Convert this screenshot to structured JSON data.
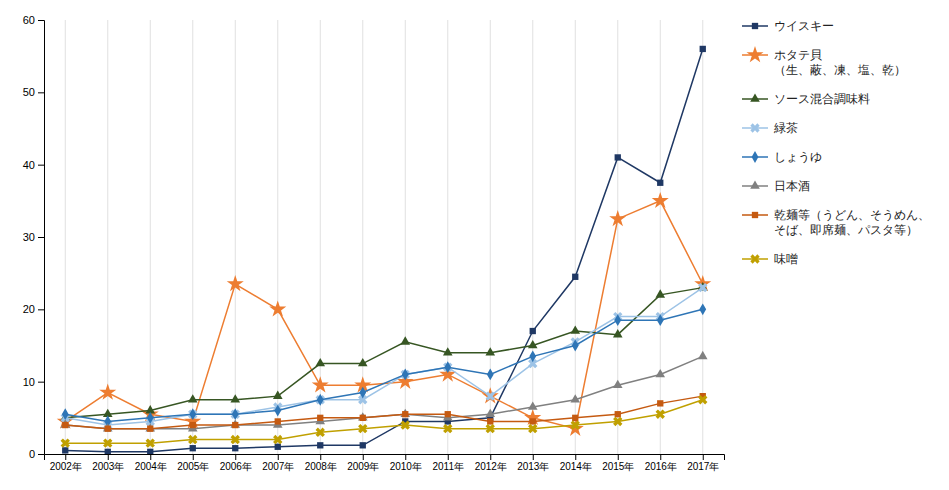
{
  "chart_data": {
    "type": "line",
    "categories": [
      "2002年",
      "2003年",
      "2004年",
      "2005年",
      "2006年",
      "2007年",
      "2008年",
      "2009年",
      "2010年",
      "2011年",
      "2012年",
      "2013年",
      "2014年",
      "2015年",
      "2016年",
      "2017年"
    ],
    "series": [
      {
        "name": "ウイスキー",
        "color": "#1F3864",
        "marker": "square",
        "values": [
          0.5,
          0.3,
          0.3,
          0.8,
          0.8,
          1.0,
          1.2,
          1.2,
          4.5,
          4.5,
          5.0,
          17.0,
          24.5,
          41.0,
          37.5,
          56.0
        ]
      },
      {
        "name": "ホタテ貝\n（生、蔽、凍、塩、乾）",
        "color": "#ED7D31",
        "marker": "star",
        "values": [
          4.5,
          8.5,
          5.5,
          4.5,
          23.5,
          20.0,
          9.5,
          9.5,
          10.0,
          11.0,
          8.0,
          5.0,
          3.5,
          32.5,
          35.0,
          23.5
        ]
      },
      {
        "name": "ソース混合調味料",
        "color": "#375623",
        "marker": "triangle",
        "values": [
          5.0,
          5.5,
          6.0,
          7.5,
          7.5,
          8.0,
          12.5,
          12.5,
          15.5,
          14.0,
          14.0,
          15.0,
          17.0,
          16.5,
          22.0,
          23.0
        ]
      },
      {
        "name": "緑茶",
        "color": "#9DC3E6",
        "marker": "x",
        "values": [
          5.0,
          4.0,
          4.5,
          5.5,
          5.5,
          6.5,
          7.5,
          7.5,
          11.0,
          12.0,
          8.0,
          12.5,
          15.5,
          19.0,
          19.0,
          23.0
        ]
      },
      {
        "name": "しょうゆ",
        "color": "#2E75B6",
        "marker": "diamond",
        "values": [
          5.5,
          4.5,
          5.0,
          5.5,
          5.5,
          6.0,
          7.5,
          8.5,
          11.0,
          12.0,
          11.0,
          13.5,
          15.0,
          18.5,
          18.5,
          20.0
        ]
      },
      {
        "name": "日本酒",
        "color": "#808080",
        "marker": "triangle",
        "values": [
          4.0,
          3.5,
          3.5,
          3.5,
          4.0,
          4.0,
          4.5,
          5.0,
          5.5,
          5.0,
          5.5,
          6.5,
          7.5,
          9.5,
          11.0,
          13.5
        ]
      },
      {
        "name": "乾麺等（うどん、そうめん、\nそば、即席麺、パスタ等）",
        "color": "#C55A11",
        "marker": "square",
        "values": [
          4.0,
          3.5,
          3.5,
          4.0,
          4.0,
          4.5,
          5.0,
          5.0,
          5.5,
          5.5,
          4.5,
          4.5,
          5.0,
          5.5,
          7.0,
          8.0
        ]
      },
      {
        "name": "味噌",
        "color": "#C0A000",
        "marker": "x",
        "values": [
          1.5,
          1.5,
          1.5,
          2.0,
          2.0,
          2.0,
          3.0,
          3.5,
          4.0,
          3.5,
          3.5,
          3.5,
          4.0,
          4.5,
          5.5,
          7.5
        ]
      }
    ],
    "ylim": [
      0,
      60
    ],
    "yticks": [
      0,
      10,
      20,
      30,
      40,
      50,
      60
    ],
    "grid": "x",
    "legend": "right"
  }
}
